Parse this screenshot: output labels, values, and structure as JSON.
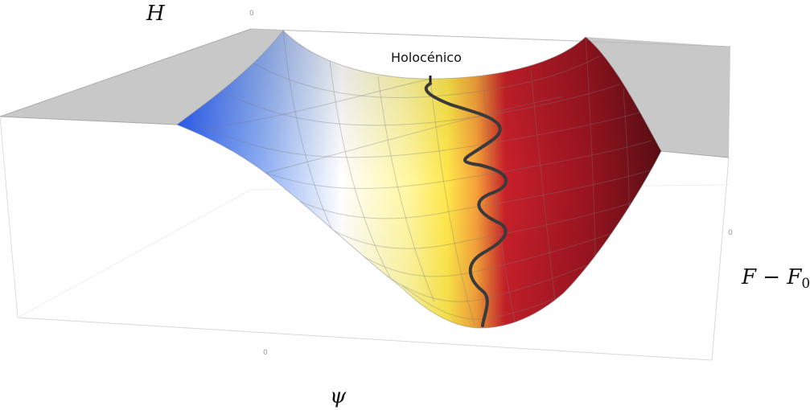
{
  "axes": {
    "vertical_label": "H",
    "depth_label": "ψ",
    "right_label_main": "F − F",
    "right_label_sub": "0",
    "tick_top": "0",
    "tick_right": "0",
    "tick_bottom": "0"
  },
  "annotation": "Holocénico",
  "colors": {
    "cold": "#2a5cf0",
    "neutral": "#ffffff",
    "mid": "#ffe84a",
    "warm": "#c8202a",
    "hot": "#5a0e14",
    "trajectory": "#3a3a3a",
    "box_wall": "#c8c8c8"
  }
}
